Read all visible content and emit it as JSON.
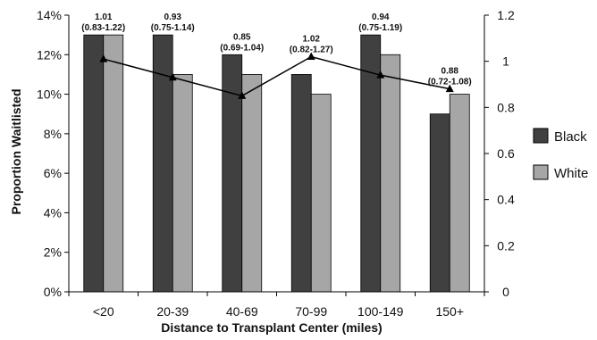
{
  "chart_data": {
    "type": "bar",
    "categories": [
      "<20",
      "20-39",
      "40-69",
      "70-99",
      "100-149",
      "150+"
    ],
    "series": [
      {
        "name": "Black",
        "values": [
          13,
          13,
          12,
          11,
          13,
          9
        ],
        "color": "#404040"
      },
      {
        "name": "White",
        "values": [
          13,
          11,
          11,
          10,
          12,
          10
        ],
        "color": "#a6a6a6"
      }
    ],
    "ratio_line": {
      "values": [
        1.01,
        0.93,
        0.85,
        1.02,
        0.94,
        0.88
      ],
      "labels": [
        "1.01",
        "0.93",
        "0.85",
        "1.02",
        "0.94",
        "0.88"
      ],
      "ci_labels": [
        "(0.83-1.22)",
        "(0.75-1.14)",
        "(0.69-1.04)",
        "(0.82-1.27)",
        "(0.75-1.19)",
        "(0.72-1.08)"
      ],
      "color": "#000000"
    },
    "xlabel": "Distance to Transplant Center (miles)",
    "ylabel": "Proportion Waitlisted",
    "ylim": [
      0,
      14
    ],
    "y_ticks": [
      "0%",
      "2%",
      "4%",
      "6%",
      "8%",
      "10%",
      "12%",
      "14%"
    ],
    "y2lim": [
      0,
      1.2
    ],
    "y2_ticks": [
      "0",
      "0.2",
      "0.4",
      "0.6",
      "0.8",
      "1",
      "1.2"
    ],
    "legend_position": "right"
  }
}
